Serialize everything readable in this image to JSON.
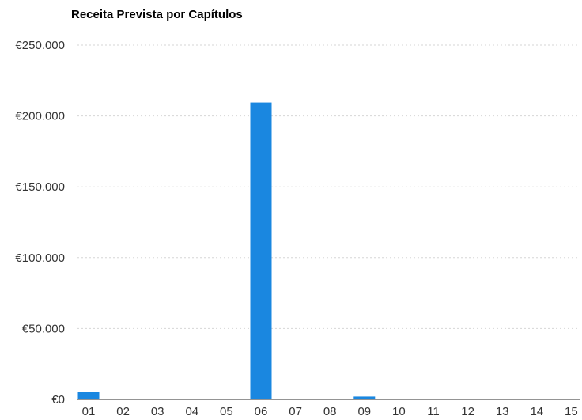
{
  "chart_data": {
    "type": "bar",
    "title": "Receita Prevista por Capítulos",
    "xlabel": "",
    "ylabel": "",
    "categories": [
      "01",
      "02",
      "03",
      "04",
      "05",
      "06",
      "07",
      "08",
      "09",
      "10",
      "11",
      "12",
      "13",
      "14",
      "15"
    ],
    "values": [
      5500,
      0,
      0,
      500,
      0,
      209500,
      500,
      0,
      2000,
      0,
      0,
      0,
      0,
      0,
      0
    ],
    "ylim": [
      0,
      250000
    ],
    "yticks": [
      0,
      50000,
      100000,
      150000,
      200000,
      250000
    ],
    "ytick_labels": [
      "€0",
      "€50.000",
      "€100.000",
      "€150.000",
      "€200.000",
      "€250.000"
    ],
    "grid": true,
    "legend": "none",
    "bar_color": "#1a87e0"
  }
}
